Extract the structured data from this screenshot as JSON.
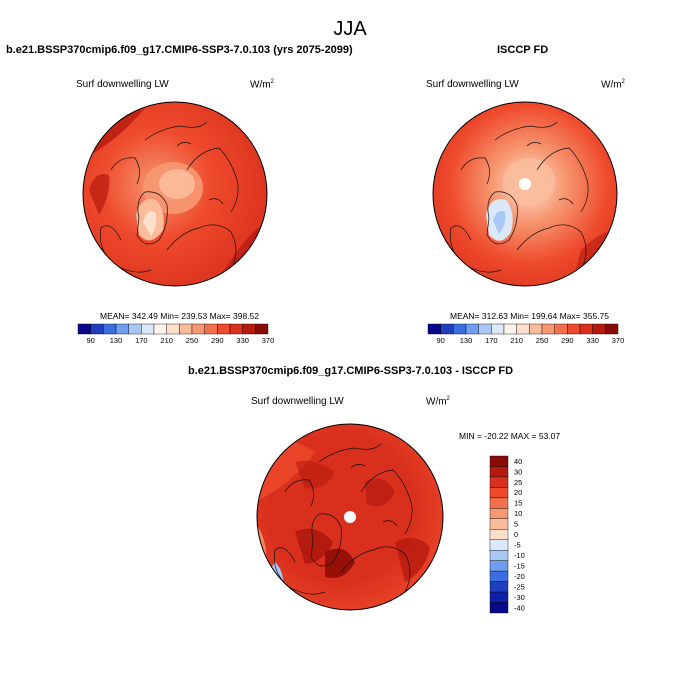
{
  "figure": {
    "season": "JJA",
    "units": "W/m",
    "units_exp": "2"
  },
  "panels": [
    {
      "title": "b.e21.BSSP370cmip6.f09_g17.CMIP6-SSP3-7.0.103 (yrs 2075-2099)",
      "variable": "Surf downwelling LW",
      "stats": "MEAN= 342.49  Min= 239.53  Max= 398.52"
    },
    {
      "title": "ISCCP FD",
      "variable": "Surf downwelling LW",
      "stats": "MEAN= 312.63  Min= 199.64  Max= 355.75"
    },
    {
      "title": "b.e21.BSSP370cmip6.f09_g17.CMIP6-SSP3-7.0.103 - ISCCP FD",
      "variable": "Surf downwelling LW",
      "stats": "MIN = -20.22 MAX =  53.07"
    }
  ],
  "colorbar_abs": {
    "labels": [
      "90",
      "130",
      "170",
      "210",
      "250",
      "290",
      "330",
      "370"
    ],
    "colors": [
      "#08088a",
      "#1f3fbf",
      "#3b6fe0",
      "#6f9ef0",
      "#a9c8f5",
      "#dbe8fa",
      "#fff4ea",
      "#fde0cc",
      "#fbbc9c",
      "#f79872",
      "#f3704c",
      "#ee4a2c",
      "#d9301d",
      "#b51a0f",
      "#8a0a05"
    ]
  },
  "colorbar_diff": {
    "labels": [
      "40",
      "30",
      "25",
      "20",
      "15",
      "10",
      "5",
      "0",
      "-5",
      "-10",
      "-15",
      "-20",
      "-25",
      "-30",
      "-40"
    ],
    "colors": [
      "#8a0a05",
      "#b51a0f",
      "#d9301d",
      "#ee4a2c",
      "#f3704c",
      "#f79872",
      "#fbbc9c",
      "#fde0cc",
      "#dbe8fa",
      "#a9c8f5",
      "#6f9ef0",
      "#3b6fe0",
      "#1f3fbf",
      "#0e1fa8",
      "#08088a"
    ]
  },
  "chart_data": {
    "type": "heatmap",
    "maps": [
      {
        "projection": "north-polar-stereographic",
        "field": "Surf downwelling LW",
        "mean": 342.49,
        "min": 239.53,
        "max": 398.52,
        "colorbar_levels": [
          90,
          130,
          170,
          210,
          250,
          290,
          330,
          370
        ]
      },
      {
        "projection": "north-polar-stereographic",
        "field": "Surf downwelling LW",
        "mean": 312.63,
        "min": 199.64,
        "max": 355.75,
        "colorbar_levels": [
          90,
          130,
          170,
          210,
          250,
          290,
          330,
          370
        ]
      },
      {
        "projection": "north-polar-stereographic",
        "field": "Surf downwelling LW",
        "min": -20.22,
        "max": 53.07,
        "colorbar_levels": [
          40,
          30,
          25,
          20,
          15,
          10,
          5,
          0,
          -5,
          -10,
          -15,
          -20,
          -25,
          -30,
          -40
        ]
      }
    ]
  }
}
